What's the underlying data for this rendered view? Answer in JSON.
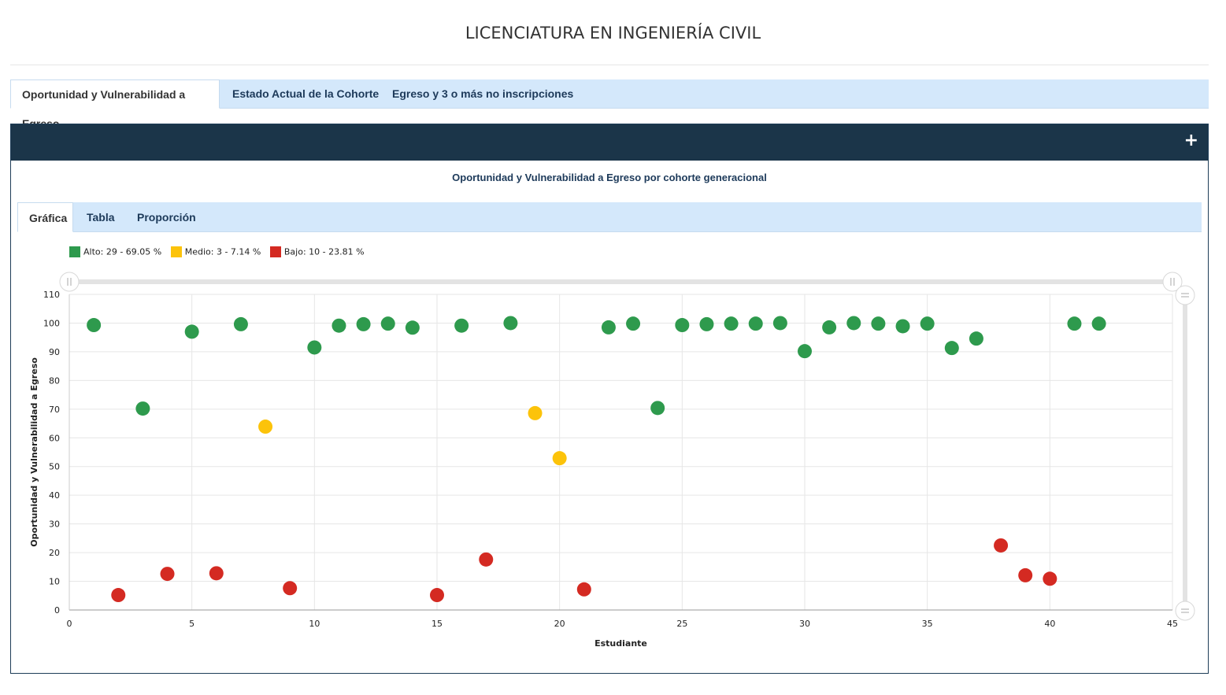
{
  "page": {
    "title": "LICENCIATURA EN INGENIERÍA CIVIL"
  },
  "main_tabs": [
    {
      "label": "Oportunidad y Vulnerabilidad a Egreso",
      "active": true
    },
    {
      "label": "Estado Actual de la Cohorte",
      "active": false
    },
    {
      "label": "Egreso y 3 o más no inscripciones",
      "active": false
    }
  ],
  "panel": {
    "expand_icon": "plus-icon",
    "header_color": "#1b3549"
  },
  "sub_tabs": [
    {
      "label": "Gráfica",
      "active": true
    },
    {
      "label": "Tabla",
      "active": false
    },
    {
      "label": "Proporción",
      "active": false
    }
  ],
  "chart_data": {
    "type": "scatter",
    "title": "Oportunidad y Vulnerabilidad a Egreso por cohorte generacional",
    "xlabel": "Estudiante",
    "ylabel": "Oportunidad y Vulnerabilidad a Egreso",
    "xlim": [
      0,
      45
    ],
    "ylim": [
      0,
      110
    ],
    "xticks": [
      0,
      5,
      10,
      15,
      20,
      25,
      30,
      35,
      40,
      45
    ],
    "yticks": [
      0,
      10,
      20,
      30,
      40,
      50,
      60,
      70,
      80,
      90,
      100,
      110
    ],
    "grid": true,
    "legend_position": "top-left",
    "series": [
      {
        "name": "Alto: 29 - 69.05 %",
        "color": "#2e9a4d",
        "points": [
          [
            1,
            99.3
          ],
          [
            3,
            70.2
          ],
          [
            5,
            97
          ],
          [
            7,
            99.6
          ],
          [
            10,
            91.5
          ],
          [
            11,
            99.1
          ],
          [
            12,
            99.6
          ],
          [
            13,
            99.8
          ],
          [
            14,
            98.4
          ],
          [
            16,
            99.1
          ],
          [
            18,
            100
          ],
          [
            22,
            98.5
          ],
          [
            23,
            99.8
          ],
          [
            24,
            70.4
          ],
          [
            25,
            99.3
          ],
          [
            26,
            99.6
          ],
          [
            27,
            99.8
          ],
          [
            28,
            99.8
          ],
          [
            29,
            100
          ],
          [
            30,
            90.2
          ],
          [
            31,
            98.5
          ],
          [
            32,
            100
          ],
          [
            33,
            99.8
          ],
          [
            34,
            98.9
          ],
          [
            35,
            99.8
          ],
          [
            36,
            91.3
          ],
          [
            37,
            94.6
          ],
          [
            41,
            99.8
          ],
          [
            42,
            99.8
          ]
        ]
      },
      {
        "name": "Medio: 3 - 7.14 %",
        "color": "#fcc30a",
        "points": [
          [
            8,
            63.9
          ],
          [
            19,
            68.6
          ],
          [
            20,
            52.9
          ]
        ]
      },
      {
        "name": "Bajo: 10 - 23.81 %",
        "color": "#d42a22",
        "points": [
          [
            2,
            5.2
          ],
          [
            4,
            12.6
          ],
          [
            6,
            12.8
          ],
          [
            9,
            7.6
          ],
          [
            15,
            5.2
          ],
          [
            17,
            17.6
          ],
          [
            21,
            7.2
          ],
          [
            38,
            22.5
          ],
          [
            39,
            12.1
          ],
          [
            40,
            10.9
          ]
        ]
      }
    ]
  }
}
